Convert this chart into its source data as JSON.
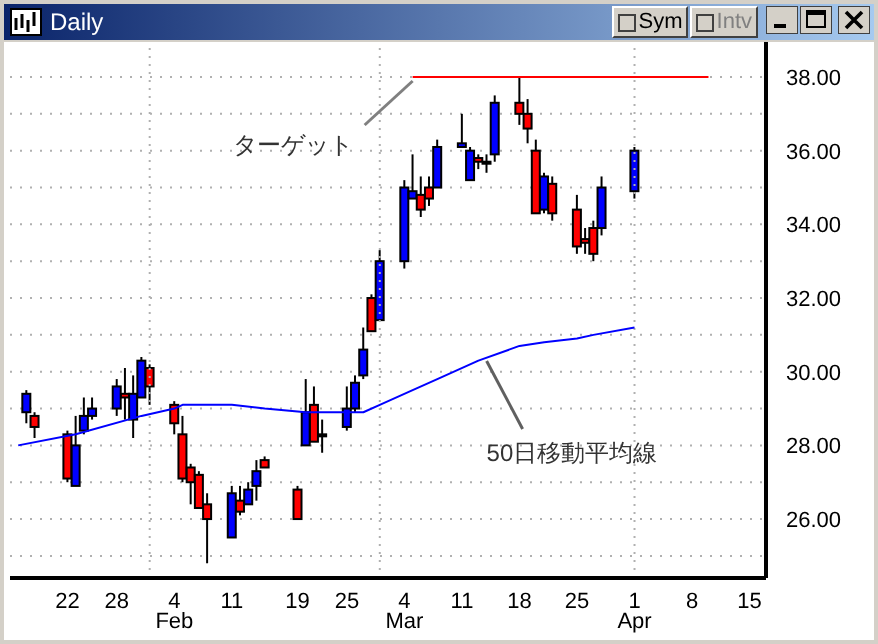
{
  "chart_data": {
    "type": "candlestick",
    "title": "Daily",
    "annotations": [
      {
        "text": "ターゲット",
        "x": "--03-05",
        "y": 38
      },
      {
        "text": "50日移動平均線",
        "x": "--03-14",
        "y": 30.4
      },
      "Sym",
      "Intv"
    ],
    "series": [
      {
        "type": "candlestick",
        "x": [
          "--01-17",
          "--01-18",
          "--01-22",
          "--01-23",
          "--01-24",
          "--01-25",
          "--01-28",
          "--01-29",
          "--01-30",
          "--01-31",
          "--02-01",
          "--02-04",
          "--02-05",
          "--02-06",
          "--02-07",
          "--02-08",
          "--02-11",
          "--02-12",
          "--02-13",
          "--02-14",
          "--02-15",
          "--02-19",
          "--02-20",
          "--02-21",
          "--02-22",
          "--02-25",
          "--02-26",
          "--02-27",
          "--02-28",
          "--03-01",
          "--03-04",
          "--03-05",
          "--03-06",
          "--03-07",
          "--03-08",
          "--03-11",
          "--03-12",
          "--03-13",
          "--03-14",
          "--03-15",
          "--03-18",
          "--03-19",
          "--03-20",
          "--03-21",
          "--03-22",
          "--03-25",
          "--03-26",
          "--03-27",
          "--03-28",
          "--04-01"
        ],
        "ohlc": [
          [
            28.9,
            29.5,
            28.6,
            29.4
          ],
          [
            28.8,
            28.9,
            28.2,
            28.5
          ],
          [
            28.3,
            28.4,
            27.0,
            27.1
          ],
          [
            26.9,
            28.8,
            26.9,
            28.0
          ],
          [
            28.4,
            29.3,
            28.3,
            28.8
          ],
          [
            28.8,
            29.3,
            28.7,
            29.0
          ],
          [
            29.0,
            29.8,
            28.8,
            29.6
          ],
          [
            29.4,
            30.1,
            28.7,
            29.3
          ],
          [
            28.7,
            29.9,
            28.2,
            29.4
          ],
          [
            29.3,
            30.4,
            29.3,
            30.3
          ],
          [
            30.1,
            30.2,
            29.1,
            29.6
          ],
          [
            29.1,
            29.2,
            28.3,
            28.6
          ],
          [
            28.3,
            28.8,
            27.0,
            27.1
          ],
          [
            27.4,
            27.5,
            26.4,
            27.0
          ],
          [
            27.2,
            27.3,
            26.3,
            26.3
          ],
          [
            26.4,
            26.7,
            24.8,
            26.0
          ],
          [
            25.5,
            26.9,
            25.5,
            26.7
          ],
          [
            26.5,
            26.9,
            26.1,
            26.2
          ],
          [
            26.4,
            27.0,
            26.4,
            26.8
          ],
          [
            26.9,
            27.6,
            26.5,
            27.3
          ],
          [
            27.6,
            27.7,
            27.4,
            27.4
          ],
          [
            26.8,
            26.9,
            26.0,
            26.0
          ],
          [
            28.0,
            29.8,
            28.0,
            28.9
          ],
          [
            29.1,
            29.6,
            28.1,
            28.1
          ],
          [
            28.3,
            28.7,
            27.8,
            28.3
          ],
          [
            28.5,
            29.6,
            28.4,
            29.0
          ],
          [
            29.0,
            29.9,
            28.9,
            29.7
          ],
          [
            29.9,
            31.2,
            29.8,
            30.6
          ],
          [
            32.0,
            32.1,
            31.1,
            31.1
          ],
          [
            31.4,
            33.3,
            31.4,
            33.0
          ],
          [
            33.0,
            35.2,
            32.8,
            35.0
          ],
          [
            34.7,
            35.9,
            34.7,
            34.9
          ],
          [
            34.8,
            35.3,
            34.2,
            34.4
          ],
          [
            35.0,
            35.3,
            34.5,
            34.7
          ],
          [
            35.0,
            36.3,
            35.0,
            36.1
          ],
          [
            36.1,
            37.0,
            36.1,
            36.2
          ],
          [
            35.2,
            36.1,
            35.2,
            36.0
          ],
          [
            35.8,
            35.9,
            35.5,
            35.7
          ],
          [
            35.7,
            35.9,
            35.4,
            35.7
          ],
          [
            35.9,
            37.5,
            35.7,
            37.3
          ],
          [
            37.3,
            38.0,
            36.7,
            37.0
          ],
          [
            37.0,
            37.4,
            36.2,
            36.6
          ],
          [
            36.0,
            36.3,
            34.3,
            34.3
          ],
          [
            34.4,
            35.4,
            34.3,
            35.3
          ],
          [
            35.1,
            35.3,
            34.1,
            34.3
          ],
          [
            34.4,
            34.8,
            33.2,
            33.4
          ],
          [
            33.6,
            33.9,
            33.2,
            33.5
          ],
          [
            33.9,
            34.1,
            33.0,
            33.2
          ],
          [
            33.9,
            35.3,
            33.7,
            35.0
          ],
          [
            34.9,
            36.1,
            34.7,
            36.0
          ]
        ],
        "colors": [
          "#0000ff",
          "#ff0000",
          "#ff0000",
          "#0000ff",
          "#0000ff",
          "#0000ff",
          "#0000ff",
          "#ff0000",
          "#0000ff",
          "#0000ff",
          "#ff0000",
          "#ff0000",
          "#ff0000",
          "#ff0000",
          "#ff0000",
          "#ff0000",
          "#0000ff",
          "#ff0000",
          "#0000ff",
          "#0000ff",
          "#ff0000",
          "#ff0000",
          "#0000ff",
          "#ff0000",
          "#000000",
          "#0000ff",
          "#0000ff",
          "#0000ff",
          "#ff0000",
          "#0000ff",
          "#0000ff",
          "#0000ff",
          "#ff0000",
          "#ff0000",
          "#0000ff",
          "#0000ff",
          "#0000ff",
          "#ff0000",
          "#000000",
          "#0000ff",
          "#ff0000",
          "#ff0000",
          "#ff0000",
          "#0000ff",
          "#ff0000",
          "#ff0000",
          "#ff0000",
          "#ff0000",
          "#0000ff",
          "#0000ff"
        ]
      },
      {
        "type": "line",
        "color": "#0000ff",
        "x": [
          "--01-16",
          "--01-23",
          "--01-31",
          "--02-04",
          "--02-05",
          "--02-11",
          "--02-15",
          "--02-20",
          "--02-22",
          "--02-27",
          "--03-01",
          "--03-05",
          "--03-08",
          "--03-13",
          "--03-18",
          "--03-21",
          "--03-25",
          "--03-27",
          "--04-01"
        ],
        "values": [
          28.0,
          28.3,
          28.8,
          29.0,
          29.1,
          29.1,
          29.0,
          28.9,
          28.9,
          28.9,
          29.1,
          29.5,
          29.8,
          30.3,
          30.7,
          30.8,
          30.9,
          31.0,
          31.2
        ]
      },
      {
        "type": "line",
        "color": "#ff0000",
        "x": [
          "--03-05",
          "--04-10"
        ],
        "values": [
          38,
          38
        ]
      }
    ],
    "xlim": [
      "--01-15",
      "--04-17"
    ],
    "xticks": [
      {
        "value": "--01-22",
        "label": "22"
      },
      {
        "value": "--01-28",
        "label": "28"
      },
      {
        "value": "--02-04",
        "label": "4\nFeb"
      },
      {
        "value": "--02-11",
        "label": "11"
      },
      {
        "value": "--02-19",
        "label": "19"
      },
      {
        "value": "--02-25",
        "label": "25"
      },
      {
        "value": "--03-04",
        "label": "4\nMar"
      },
      {
        "value": "--03-11",
        "label": "11"
      },
      {
        "value": "--03-18",
        "label": "18"
      },
      {
        "value": "--03-25",
        "label": "25"
      },
      {
        "value": "--04-01",
        "label": "1\nApr"
      },
      {
        "value": "--04-08",
        "label": "8"
      },
      {
        "value": "--04-15",
        "label": "15"
      }
    ],
    "ylim": [
      24.4,
      38.95
    ],
    "yticks": [
      {
        "value": 25,
        "label": null
      },
      {
        "value": 26,
        "label": "26.00"
      },
      {
        "value": 27,
        "label": null
      },
      {
        "value": 28,
        "label": "28.00"
      },
      {
        "value": 29,
        "label": null
      },
      {
        "value": 30,
        "label": "30.00"
      },
      {
        "value": 31,
        "label": null
      },
      {
        "value": 32,
        "label": "32.00"
      },
      {
        "value": 33,
        "label": null
      },
      {
        "value": 34,
        "label": "34.00"
      },
      {
        "value": 35,
        "label": null
      },
      {
        "value": 36,
        "label": "36.00"
      },
      {
        "value": 37,
        "label": null
      },
      {
        "value": 38,
        "label": "38.00"
      }
    ],
    "grid": "y",
    "ref_lines": [
      {
        "axis": "x",
        "value": "--02-01",
        "label": null,
        "color": "#b0b0b0",
        "line_style": "dotted"
      },
      {
        "axis": "x",
        "value": "--03-01",
        "label": null,
        "color": "#b0b0b0",
        "line_style": "dotted"
      },
      {
        "axis": "x",
        "value": "--04-01",
        "label": null,
        "color": "#b0b0b0",
        "line_style": "dotted"
      }
    ],
    "legend": false
  }
}
